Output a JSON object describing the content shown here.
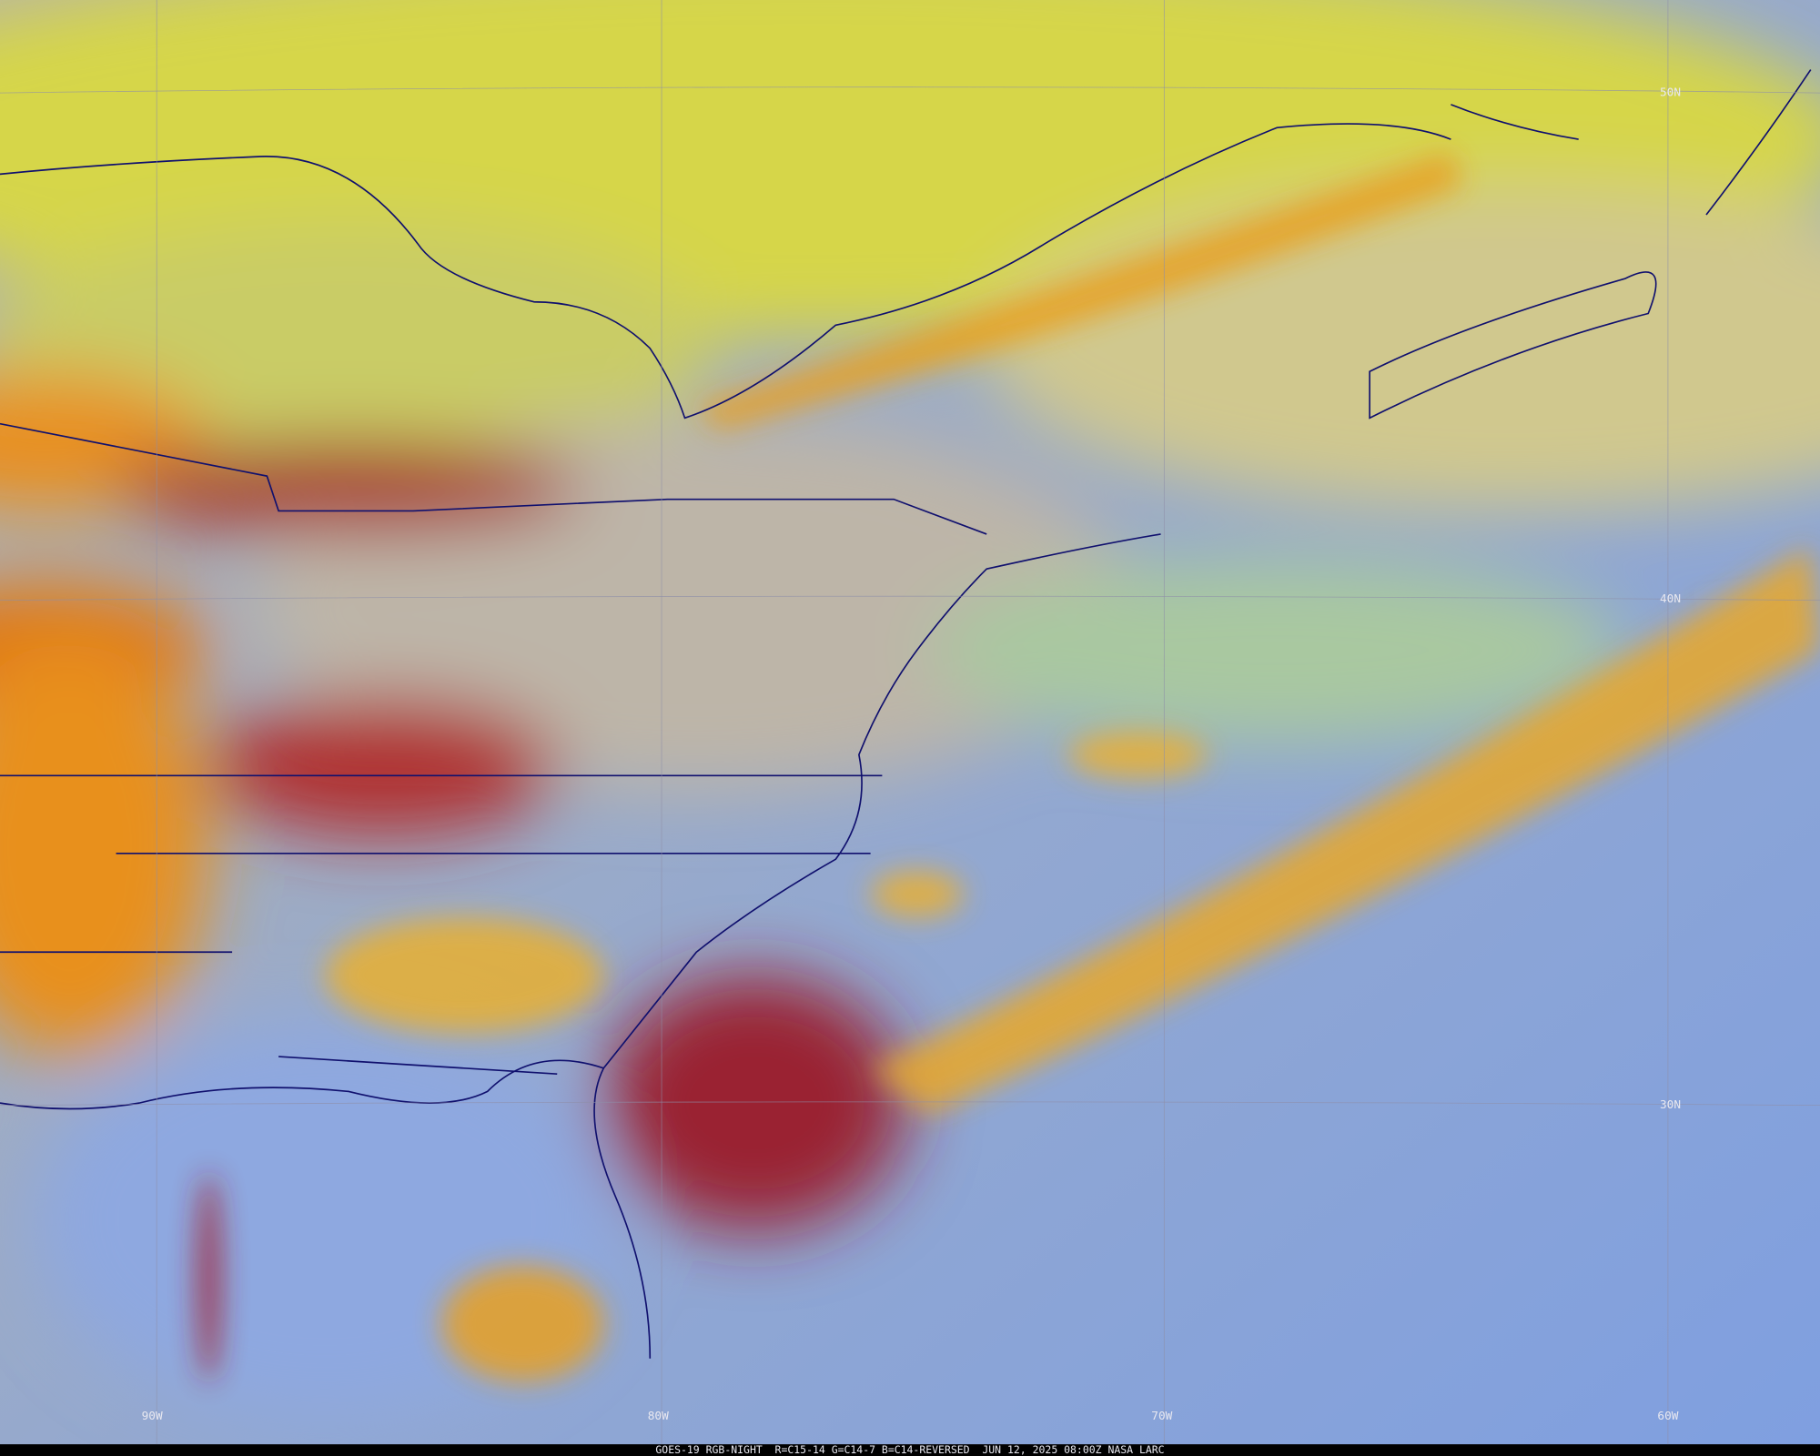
{
  "lat_labels": [
    "50N",
    "40N",
    "30N"
  ],
  "lon_labels": [
    "90W",
    "80W",
    "70W",
    "60W"
  ],
  "caption": "GOES-19 RGB-NIGHT  R=C15-14 G=C14-7 B=C14-REVERSED  JUN 12, 2025 08:00Z NASA LARC"
}
